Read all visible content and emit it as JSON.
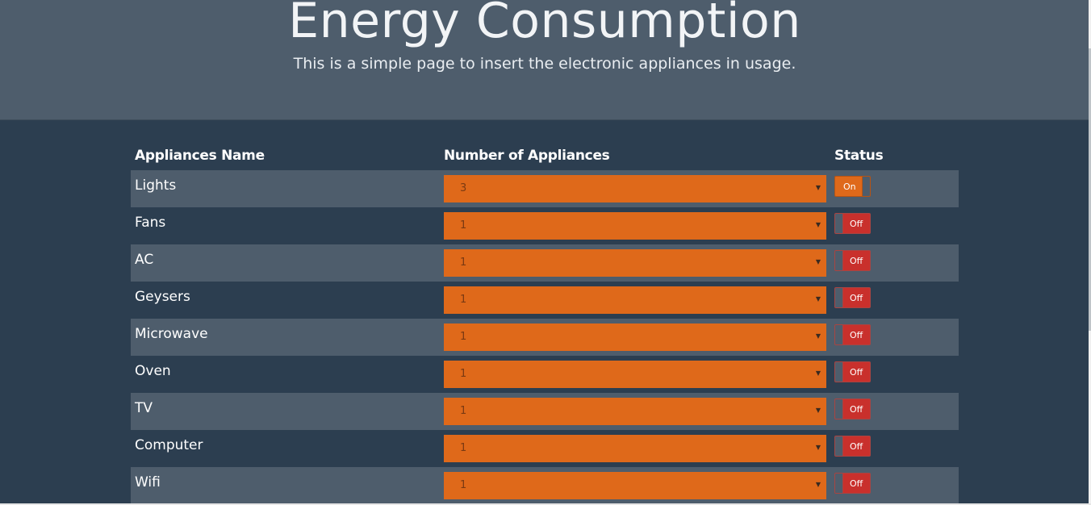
{
  "header": {
    "title": "Energy Consumption",
    "subtitle": "This is a simple page to insert the electronic appliances in usage."
  },
  "table": {
    "columns": [
      "Appliances Name",
      "Number of Appliances",
      "Status"
    ],
    "rows": [
      {
        "name": "Lights",
        "count": "3",
        "status": "On"
      },
      {
        "name": "Fans",
        "count": "1",
        "status": "Off"
      },
      {
        "name": "AC",
        "count": "1",
        "status": "Off"
      },
      {
        "name": "Geysers",
        "count": "1",
        "status": "Off"
      },
      {
        "name": "Microwave",
        "count": "1",
        "status": "Off"
      },
      {
        "name": "Oven",
        "count": "1",
        "status": "Off"
      },
      {
        "name": "TV",
        "count": "1",
        "status": "Off"
      },
      {
        "name": "Computer",
        "count": "1",
        "status": "Off"
      },
      {
        "name": "Wifi",
        "count": "1",
        "status": "Off"
      }
    ]
  },
  "colors": {
    "background": "#2c3e50",
    "header_bg": "#4e5d6c",
    "accent_orange": "#df691a",
    "off_red": "#d9534f"
  },
  "icons": {
    "dropdown": "caret-down-icon"
  }
}
